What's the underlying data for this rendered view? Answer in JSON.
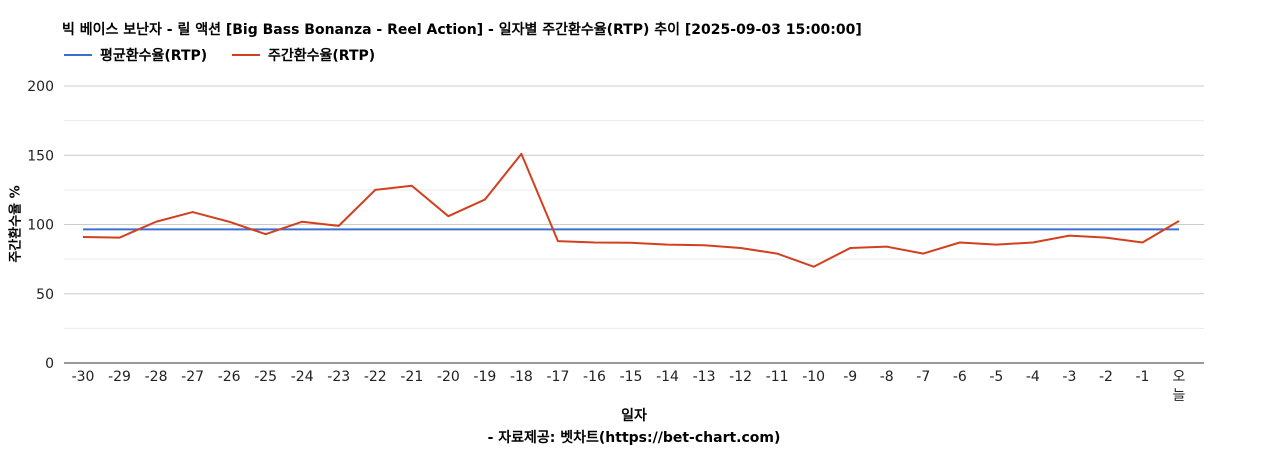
{
  "chart_data": {
    "type": "line",
    "title": "빅 베이스 보난자 - 릴 액션 [Big Bass Bonanza - Reel Action] - 일자별 주간환수율(RTP) 추이 [2025-09-03 15:00:00]",
    "xlabel": "일자",
    "ylabel": "주간환수율 %",
    "source": "- 자료제공: 벳차트(https://bet-chart.com)",
    "ylim": [
      0,
      200
    ],
    "yticks": [
      0,
      50,
      100,
      150,
      200
    ],
    "grid": true,
    "legend_position": "top-left",
    "categories": [
      "-30",
      "-29",
      "-28",
      "-27",
      "-26",
      "-25",
      "-24",
      "-23",
      "-22",
      "-21",
      "-20",
      "-19",
      "-18",
      "-17",
      "-16",
      "-15",
      "-14",
      "-13",
      "-12",
      "-11",
      "-10",
      "-9",
      "-8",
      "-7",
      "-6",
      "-5",
      "-4",
      "-3",
      "-2",
      "-1",
      "오늘"
    ],
    "series": [
      {
        "name": "평균환수율(RTP)",
        "color": "#3b6fd1",
        "values": [
          96.5,
          96.5,
          96.5,
          96.5,
          96.5,
          96.5,
          96.5,
          96.5,
          96.5,
          96.5,
          96.5,
          96.5,
          96.5,
          96.5,
          96.5,
          96.5,
          96.5,
          96.5,
          96.5,
          96.5,
          96.5,
          96.5,
          96.5,
          96.5,
          96.5,
          96.5,
          96.5,
          96.5,
          96.5,
          96.5,
          96.5
        ]
      },
      {
        "name": "주간환수율(RTP)",
        "color": "#d2401e",
        "values": [
          91,
          90.5,
          102,
          109,
          102,
          93,
          102,
          99,
          125,
          128,
          106,
          118,
          151,
          88,
          87,
          86.8,
          85.5,
          85,
          83,
          79,
          69.5,
          83,
          84,
          79,
          87,
          85.5,
          87,
          92,
          90.5,
          87,
          102.5
        ]
      }
    ]
  }
}
